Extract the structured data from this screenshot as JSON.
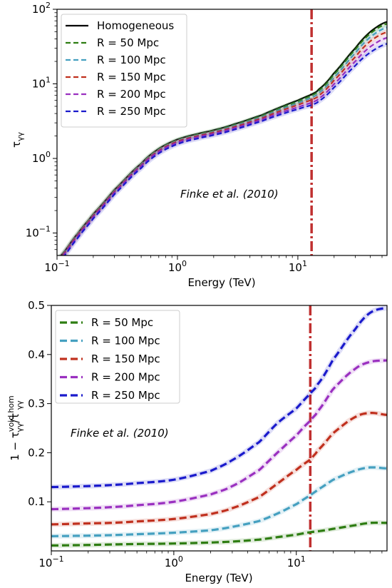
{
  "chart_data": [
    {
      "type": "line",
      "xscale": "log",
      "yscale": "log",
      "xlim": [
        0.1,
        55
      ],
      "ylim": [
        0.05,
        100
      ],
      "xlabel": "Energy (TeV)",
      "ylabel": "τ_γγ",
      "ylabel_main": "τ",
      "ylabel_sub": "γγ",
      "x_ticks": [
        {
          "value": 0.1,
          "base": "10",
          "exp": "−1"
        },
        {
          "value": 1,
          "base": "10",
          "exp": "0"
        },
        {
          "value": 10,
          "base": "10",
          "exp": "1"
        }
      ],
      "y_ticks": [
        {
          "value": 0.1,
          "base": "10",
          "exp": "−1"
        },
        {
          "value": 1,
          "base": "10",
          "exp": "0"
        },
        {
          "value": 10,
          "base": "10",
          "exp": "1"
        },
        {
          "value": 100,
          "base": "10",
          "exp": "2"
        }
      ],
      "annotation": "Finke et al. (2010)",
      "vline_x": 13,
      "vline_color": "#c03030",
      "legend_position": "upper-left",
      "x": [
        0.1,
        0.15,
        0.2,
        0.3,
        0.5,
        0.7,
        1,
        1.5,
        2,
        3,
        5,
        7,
        10,
        13,
        15,
        20,
        30,
        40,
        55
      ],
      "series": [
        {
          "name": "Homogeneous",
          "color": "#000000",
          "dash": "solid",
          "values": [
            0.045,
            0.1,
            0.18,
            0.38,
            0.85,
            1.35,
            1.8,
            2.15,
            2.4,
            2.9,
            3.8,
            4.8,
            6.0,
            7.2,
            8.5,
            14.0,
            30.0,
            50.0,
            68.0
          ]
        },
        {
          "name": "R = 50 Mpc",
          "color": "#2e7d12",
          "dash": "dashed",
          "values": [
            0.0445,
            0.099,
            0.178,
            0.375,
            0.84,
            1.33,
            1.77,
            2.11,
            2.36,
            2.84,
            3.71,
            4.67,
            5.8,
            6.93,
            8.16,
            13.4,
            28.6,
            47.4,
            64.1
          ]
        },
        {
          "name": "R = 100 Mpc",
          "color": "#45a0c0",
          "dash": "dashed",
          "values": [
            0.0437,
            0.097,
            0.174,
            0.367,
            0.82,
            1.3,
            1.73,
            2.06,
            2.29,
            2.75,
            3.57,
            4.47,
            5.5,
            6.51,
            7.6,
            12.2,
            25.8,
            42.5,
            57.0
          ]
        },
        {
          "name": "R = 150 Mpc",
          "color": "#c0301e",
          "dash": "dashed",
          "values": [
            0.0429,
            0.095,
            0.171,
            0.36,
            0.8,
            1.27,
            1.69,
            2.01,
            2.23,
            2.66,
            3.44,
            4.27,
            5.2,
            6.1,
            7.03,
            11.2,
            22.9,
            37.4,
            49.4
          ]
        },
        {
          "name": "R = 200 Mpc",
          "color": "#9a30c0",
          "dash": "dashed",
          "values": [
            0.0413,
            0.091,
            0.165,
            0.347,
            0.78,
            1.23,
            1.63,
            1.94,
            2.15,
            2.56,
            3.29,
            4.04,
            4.85,
            5.6,
            6.4,
            10.0,
            20.0,
            31.5,
            41.5
          ]
        },
        {
          "name": "R = 250 Mpc",
          "color": "#1a1acc",
          "dash": "dashed",
          "values": [
            0.0394,
            0.087,
            0.157,
            0.331,
            0.74,
            1.17,
            1.56,
            1.86,
            2.06,
            2.45,
            3.15,
            3.83,
            4.57,
            5.2,
            5.9,
            9.0,
            17.5,
            26.5,
            34.5
          ]
        }
      ]
    },
    {
      "type": "line",
      "xscale": "log",
      "yscale": "linear",
      "xlim": [
        0.1,
        55
      ],
      "ylim": [
        0.0,
        0.5
      ],
      "xlabel": "Energy (TeV)",
      "ylabel": "1 − τ_γγ^void/τ_γγ^hom",
      "ylabel_prefix": "1 − τ",
      "ylabel_sub1": "γγ",
      "ylabel_sup1": "void",
      "ylabel_mid": "/τ",
      "ylabel_sub2": "γγ",
      "ylabel_sup2": "hom",
      "x_ticks": [
        {
          "value": 0.1,
          "base": "10",
          "exp": "−1"
        },
        {
          "value": 1,
          "base": "10",
          "exp": "0"
        },
        {
          "value": 10,
          "base": "10",
          "exp": "1"
        }
      ],
      "y_ticks": [
        {
          "value": 0.1,
          "label": "0.1"
        },
        {
          "value": 0.2,
          "label": "0.2"
        },
        {
          "value": 0.3,
          "label": "0.3"
        },
        {
          "value": 0.4,
          "label": "0.4"
        },
        {
          "value": 0.5,
          "label": "0.5"
        }
      ],
      "annotation": "Finke et al. (2010)",
      "vline_x": 13,
      "vline_color": "#c03030",
      "legend_position": "upper-left",
      "x": [
        0.1,
        0.2,
        0.3,
        0.5,
        1,
        2,
        3,
        5,
        7,
        10,
        13,
        15,
        20,
        30,
        40,
        55
      ],
      "series": [
        {
          "name": "R = 50 Mpc",
          "color": "#2e7d12",
          "dash": "dashed",
          "values": [
            0.011,
            0.012,
            0.013,
            0.014,
            0.015,
            0.017,
            0.019,
            0.023,
            0.028,
            0.033,
            0.038,
            0.04,
            0.045,
            0.052,
            0.057,
            0.057
          ]
        },
        {
          "name": "R = 100 Mpc",
          "color": "#45a0c0",
          "dash": "dashed",
          "values": [
            0.03,
            0.031,
            0.032,
            0.034,
            0.037,
            0.042,
            0.049,
            0.061,
            0.076,
            0.095,
            0.113,
            0.125,
            0.145,
            0.163,
            0.17,
            0.168
          ]
        },
        {
          "name": "R = 150 Mpc",
          "color": "#c0301e",
          "dash": "dashed",
          "values": [
            0.054,
            0.056,
            0.057,
            0.06,
            0.065,
            0.075,
            0.087,
            0.11,
            0.137,
            0.165,
            0.186,
            0.205,
            0.24,
            0.272,
            0.281,
            0.277
          ]
        },
        {
          "name": "R = 200 Mpc",
          "color": "#9a30c0",
          "dash": "dashed",
          "values": [
            0.085,
            0.087,
            0.089,
            0.093,
            0.1,
            0.115,
            0.132,
            0.165,
            0.2,
            0.235,
            0.265,
            0.285,
            0.33,
            0.37,
            0.385,
            0.388
          ]
        },
        {
          "name": "R = 250 Mpc",
          "color": "#1a1acc",
          "dash": "dashed",
          "values": [
            0.13,
            0.132,
            0.134,
            0.138,
            0.145,
            0.163,
            0.185,
            0.222,
            0.26,
            0.29,
            0.32,
            0.34,
            0.39,
            0.45,
            0.485,
            0.495
          ]
        }
      ]
    }
  ]
}
